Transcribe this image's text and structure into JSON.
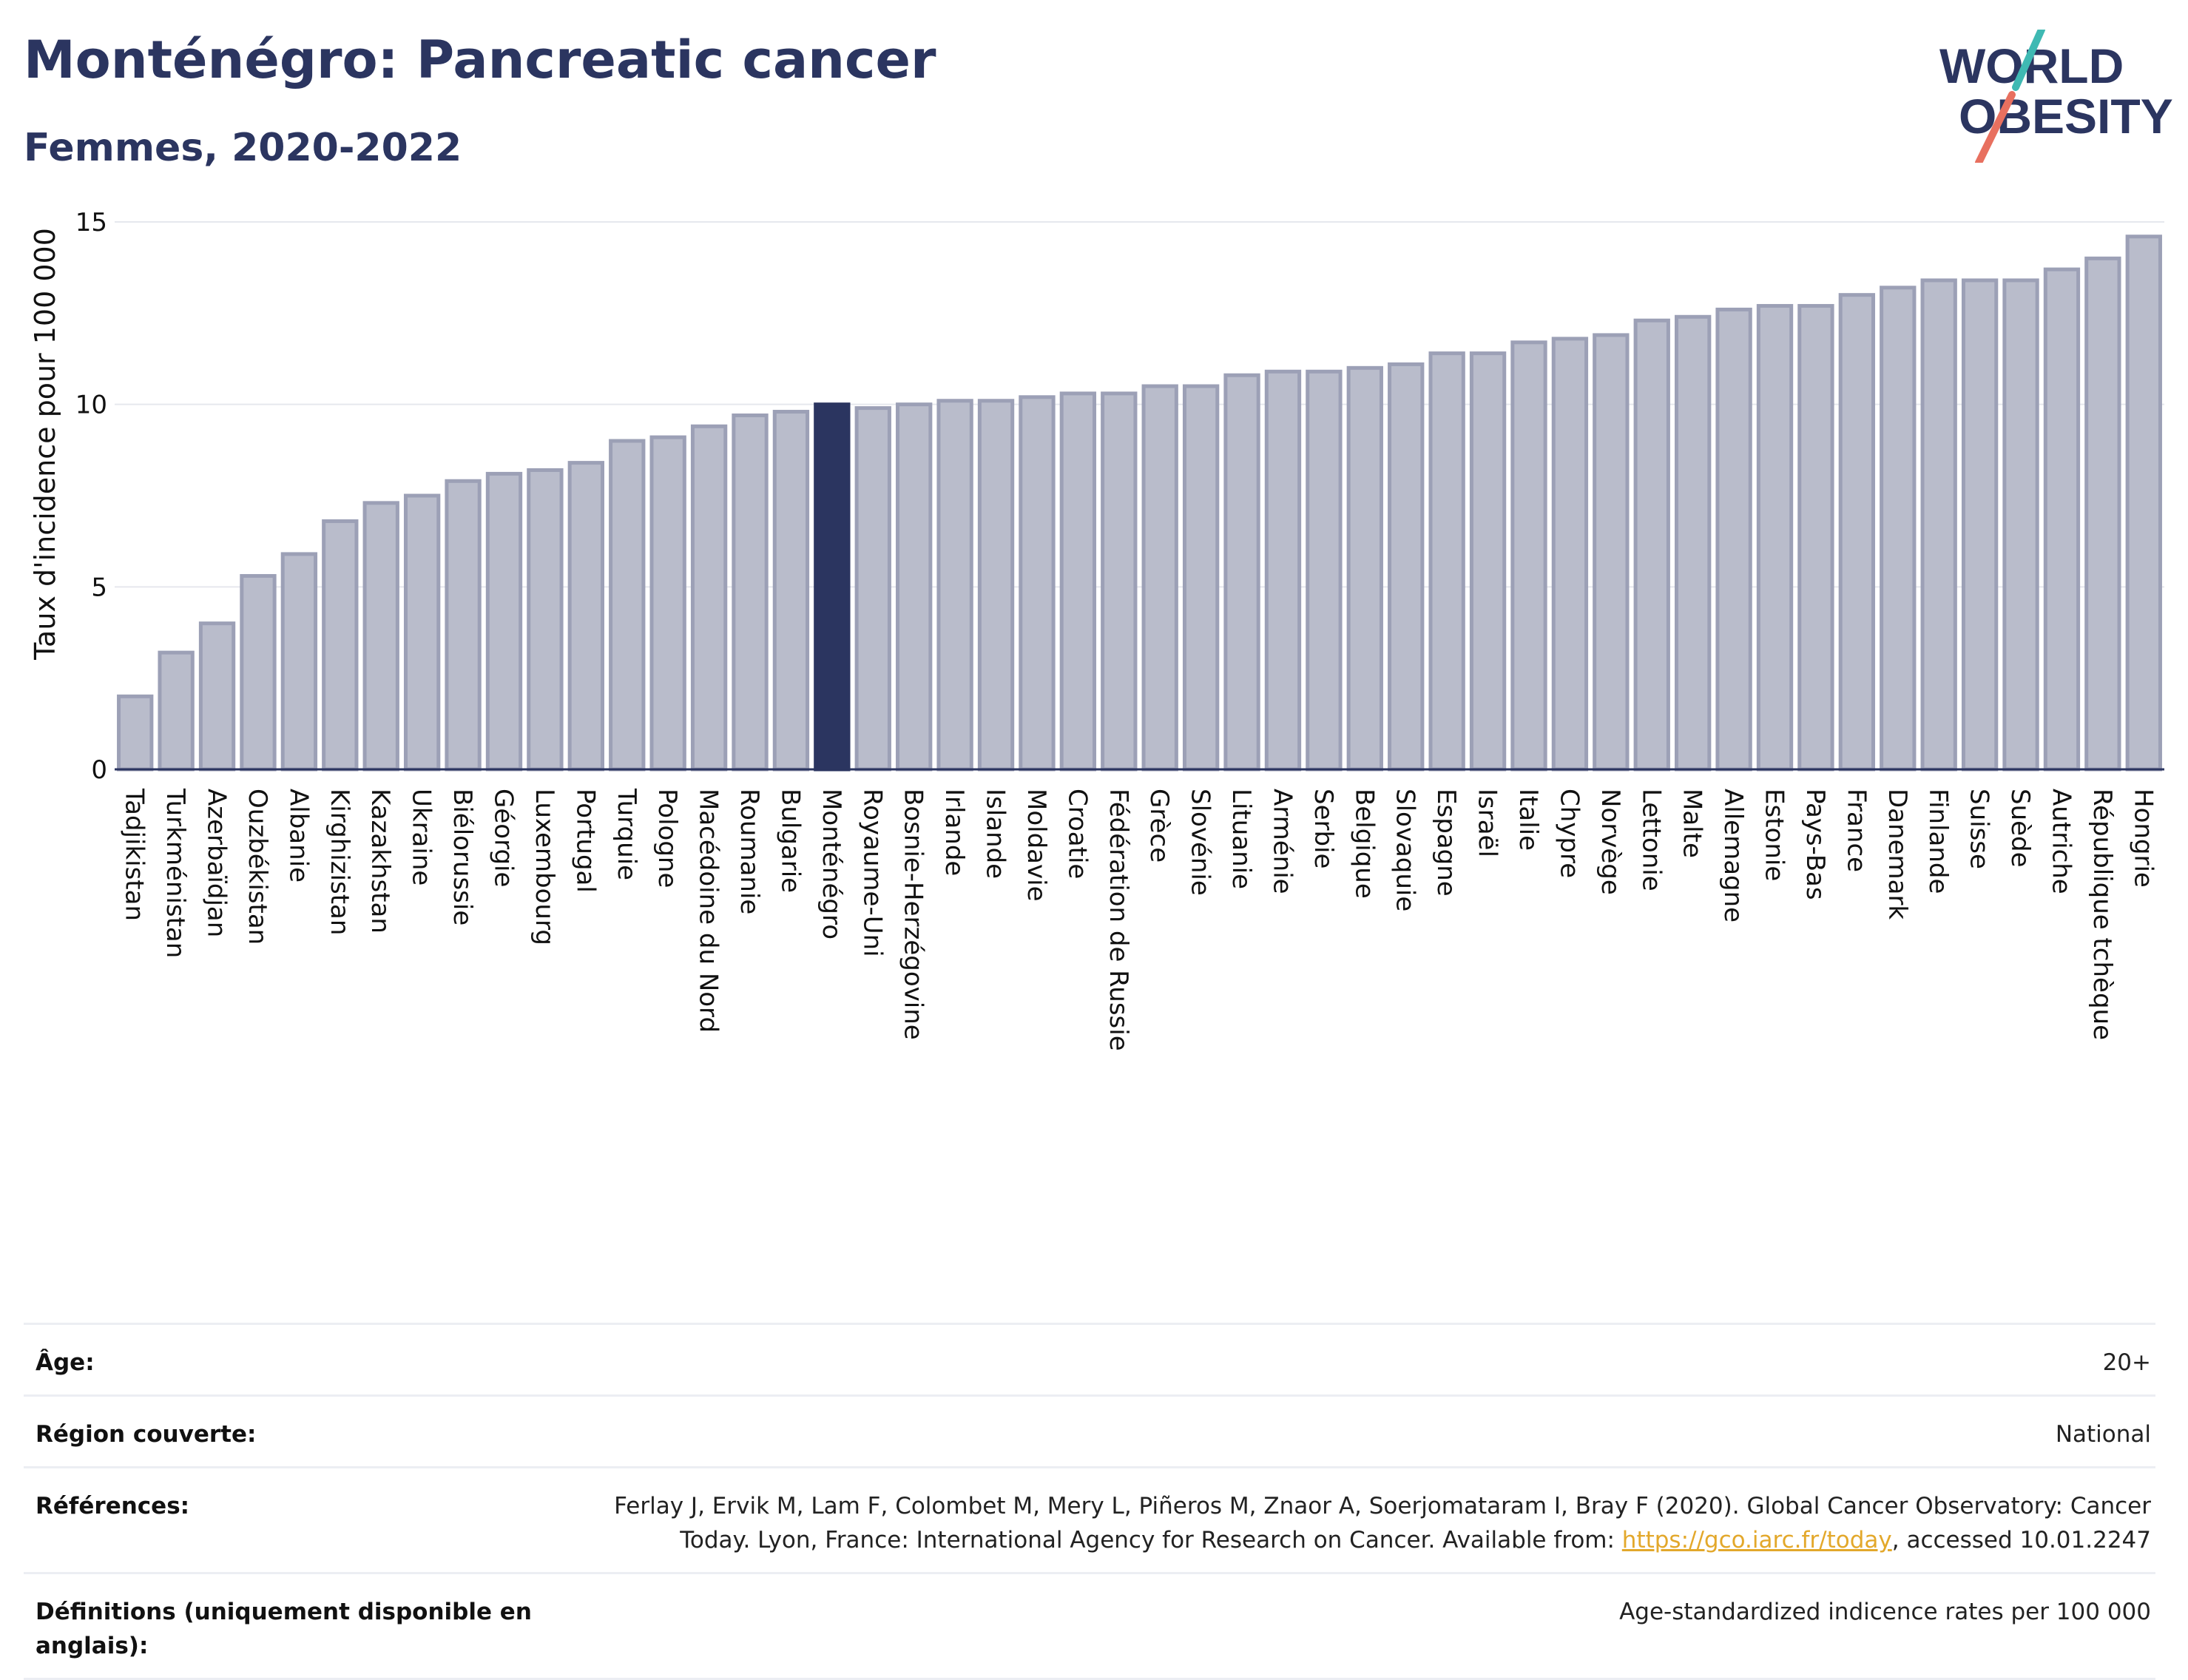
{
  "header": {
    "title": "Monténégro: Pancreatic cancer",
    "subtitle": "Femmes, 2020-2022"
  },
  "logo": {
    "line1": "WORLD",
    "line2": "OBESITY",
    "accent_teal": "#3fb9b3",
    "accent_coral": "#e8705f",
    "text_color": "#2b3560"
  },
  "chart_data": {
    "type": "bar",
    "ylabel": "Taux d'incidence pour 100 000",
    "ylim": [
      0,
      15
    ],
    "yticks": [
      0,
      5,
      10,
      15
    ],
    "grid": true,
    "highlight": "Monténégro",
    "bar_color": "#b9bccb",
    "bar_edge_color": "#9ca0b6",
    "highlight_color": "#2b3560",
    "categories": [
      "Tadjikistan",
      "Turkménistan",
      "Azerbaïdjan",
      "Ouzbékistan",
      "Albanie",
      "Kirghizistan",
      "Kazakhstan",
      "Ukraine",
      "Biélorussie",
      "Géorgie",
      "Luxembourg",
      "Portugal",
      "Turquie",
      "Pologne",
      "Macédoine du Nord",
      "Roumanie",
      "Bulgarie",
      "Monténégro",
      "Royaume-Uni",
      "Bosnie-Herzégovine",
      "Irlande",
      "Islande",
      "Moldavie",
      "Croatie",
      "Fédération de Russie",
      "Grèce",
      "Slovénie",
      "Lituanie",
      "Arménie",
      "Serbie",
      "Belgique",
      "Slovaquie",
      "Espagne",
      "Israël",
      "Italie",
      "Chypre",
      "Norvège",
      "Lettonie",
      "Malte",
      "Allemagne",
      "Estonie",
      "Pays-Bas",
      "France",
      "Danemark",
      "Finlande",
      "Suisse",
      "Suède",
      "Autriche",
      "République tchèque",
      "Hongrie"
    ],
    "values": [
      2.0,
      3.2,
      4.0,
      5.3,
      5.9,
      6.8,
      7.3,
      7.5,
      7.9,
      8.1,
      8.2,
      8.4,
      9.0,
      9.1,
      9.4,
      9.7,
      9.8,
      10.0,
      9.9,
      10.0,
      10.1,
      10.1,
      10.2,
      10.3,
      10.3,
      10.5,
      10.5,
      10.8,
      10.9,
      10.9,
      11.0,
      11.1,
      11.4,
      11.4,
      11.7,
      11.8,
      11.9,
      12.3,
      12.4,
      12.6,
      12.7,
      12.7,
      13.0,
      13.2,
      13.4,
      13.4,
      13.4,
      13.7,
      14.0,
      14.6
    ]
  },
  "meta": {
    "rows": [
      {
        "label": "Âge:",
        "value": "20+"
      },
      {
        "label": "Région couverte:",
        "value": "National"
      },
      {
        "label": "Références:",
        "value_before": "Ferlay J, Ervik M, Lam F, Colombet M, Mery L, Piñeros M, Znaor A, Soerjomataram I, Bray F (2020). Global Cancer Observatory: Cancer Today. Lyon, France: International Agency for Research on Cancer. Available from: ",
        "link": "https://gco.iarc.fr/today",
        "value_after": ", accessed 10.01.2247"
      },
      {
        "label": "Définitions (uniquement disponible en anglais):",
        "value": "Age-standardized indicence rates per 100 000"
      }
    ]
  }
}
